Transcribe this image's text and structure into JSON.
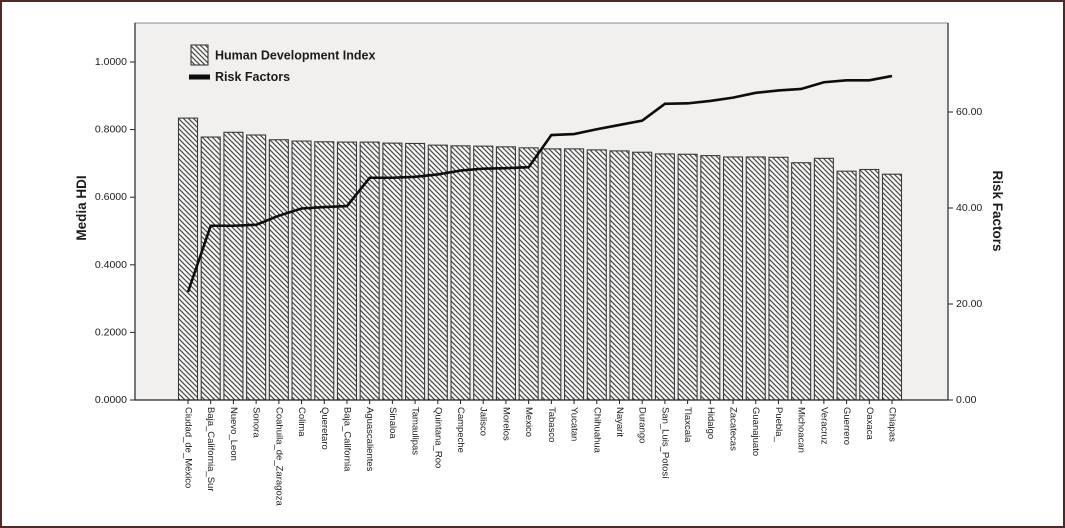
{
  "frame": {
    "border_color": "#4f2928",
    "background": "#ffffff",
    "panel_background": "#f1f0ee"
  },
  "chart_data": {
    "type": "bar",
    "title": "",
    "grid": false,
    "legend": {
      "position": "top-left",
      "entries": [
        {
          "label": "Human Development Index",
          "swatch": "diagonal-hatch-rect"
        },
        {
          "label": "Risk Factors",
          "swatch": "thick-black-line"
        }
      ]
    },
    "left_axis": {
      "title": "Media HDI",
      "tick_labels": [
        "0.0000",
        "0.2000",
        "0.4000",
        "0.6000",
        "0.8000",
        "1.0000"
      ],
      "tick_values": [
        0,
        0.2,
        0.4,
        0.6,
        0.8,
        1.0
      ],
      "range": [
        0,
        1.115
      ]
    },
    "right_axis": {
      "title": "Risk Factors",
      "tick_labels": [
        "0.00",
        "20.00",
        "40.00",
        "60.00"
      ],
      "tick_values": [
        0,
        20,
        40,
        60
      ],
      "range": [
        0,
        78.5
      ]
    },
    "categories": [
      "Ciudad_de_México",
      "Baja_California_Sur",
      "Nuevo_Leon",
      "Sonora",
      "Coahuila_de_Zaragoza",
      "Colima",
      "Queretaro",
      "Baja_California",
      "Aguascalientes",
      "Sinaloa",
      "Tamaulipas",
      "Quintana_Roo",
      "Campeche",
      "Jalisco",
      "Morelos",
      "Mexico",
      "Tabasco",
      "Yucatan",
      "Chihuahua",
      "Nayarit",
      "Durango",
      "San_Luis_Potosí",
      "Tlaxcala",
      "Hidalgo",
      "Zacatecas",
      "Guanajuato",
      "Puebla_",
      "Michoacan",
      "Veracruz",
      "Guerrero",
      "Oaxaca",
      "Chiapas"
    ],
    "series": [
      {
        "name": "Human Development Index",
        "type": "bar",
        "axis": "left",
        "fill": "diagonal-hatch",
        "values": [
          0.834,
          0.778,
          0.792,
          0.784,
          0.77,
          0.766,
          0.764,
          0.763,
          0.763,
          0.76,
          0.759,
          0.754,
          0.752,
          0.751,
          0.749,
          0.746,
          0.743,
          0.743,
          0.74,
          0.737,
          0.733,
          0.728,
          0.727,
          0.723,
          0.719,
          0.719,
          0.718,
          0.702,
          0.715,
          0.677,
          0.682,
          0.668
        ]
      },
      {
        "name": "Risk Factors",
        "type": "line",
        "axis": "right",
        "color": "#0d0d0d",
        "values": [
          22.5,
          36.3,
          36.3,
          36.5,
          38.4,
          39.9,
          40.2,
          40.4,
          46.3,
          46.3,
          46.5,
          47.0,
          47.8,
          48.2,
          48.3,
          48.5,
          55.2,
          55.4,
          56.4,
          57.3,
          58.2,
          61.7,
          61.8,
          62.3,
          63.0,
          64.0,
          64.5,
          64.8,
          66.2,
          66.6,
          66.6,
          67.5
        ]
      }
    ]
  }
}
